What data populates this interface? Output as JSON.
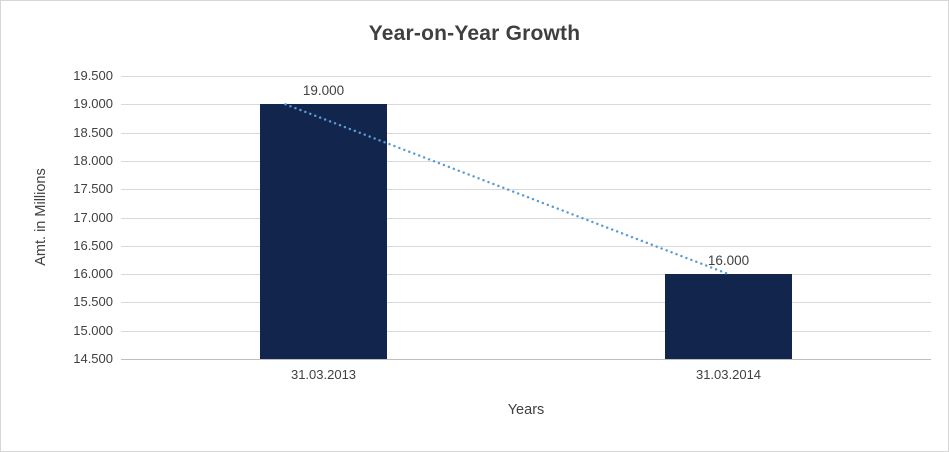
{
  "chart_data": {
    "type": "bar",
    "title": "Year-on-Year Growth",
    "categories": [
      "31.03.2013",
      "31.03.2014"
    ],
    "values": [
      19000,
      16000
    ],
    "data_labels": [
      "19.000",
      "16.000"
    ],
    "xlabel": "Years",
    "ylabel": "Amt. in Millions",
    "ylim": [
      14500,
      19500
    ],
    "ytick_step": 500,
    "ytick_labels": [
      "14.500",
      "15.000",
      "15.500",
      "16.000",
      "16.500",
      "17.000",
      "17.500",
      "18.000",
      "18.500",
      "19.000",
      "19.500"
    ],
    "grid": true,
    "legend": "none",
    "trendline": {
      "type": "linear",
      "style": "dotted",
      "from": 19000,
      "to": 16000
    },
    "colors": {
      "bar": "#12264D",
      "trendline": "#5B9BD5",
      "gridline": "#D9D9D9",
      "axis_line": "#BFBFBF",
      "axis_text": "#404040",
      "title_text": "#3F3F3F",
      "border": "#D6D6D6",
      "background": "#FFFFFF"
    }
  }
}
